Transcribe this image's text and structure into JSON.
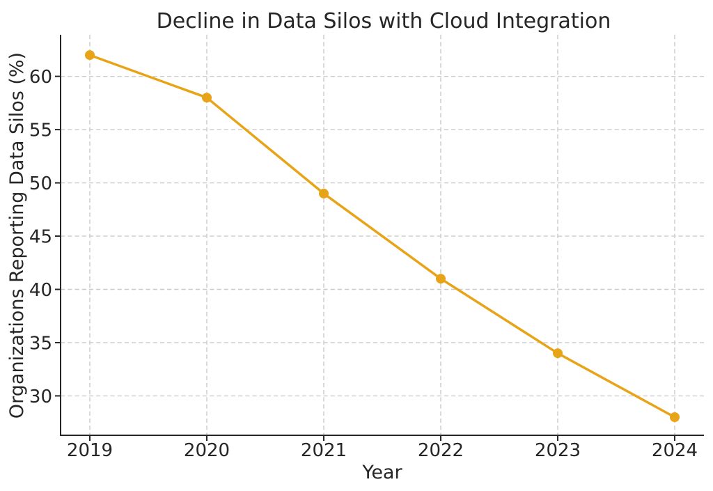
{
  "chart_data": {
    "type": "line",
    "title": "Decline in Data Silos with Cloud Integration",
    "xlabel": "Year",
    "ylabel": "Organizations Reporting Data Silos (%)",
    "x": [
      2019,
      2020,
      2021,
      2022,
      2023,
      2024
    ],
    "series": [
      {
        "name": "Organizations Reporting Data Silos (%)",
        "values": [
          62,
          58,
          49,
          41,
          34,
          28
        ]
      }
    ],
    "xtick_labels": [
      "2019",
      "2020",
      "2021",
      "2022",
      "2023",
      "2024"
    ],
    "ytick_values": [
      30,
      35,
      40,
      45,
      50,
      55,
      60
    ],
    "xlim": [
      2018.75,
      2024.25
    ],
    "ylim": [
      26.3,
      63.9
    ],
    "grid": true,
    "grid_style": "dashed",
    "legend": false,
    "colors": {
      "line": "#E8A418",
      "marker": "#E8A418",
      "grid": "#cbcbcb",
      "axis": "#262626",
      "text": "#262626",
      "background": "#ffffff"
    }
  }
}
